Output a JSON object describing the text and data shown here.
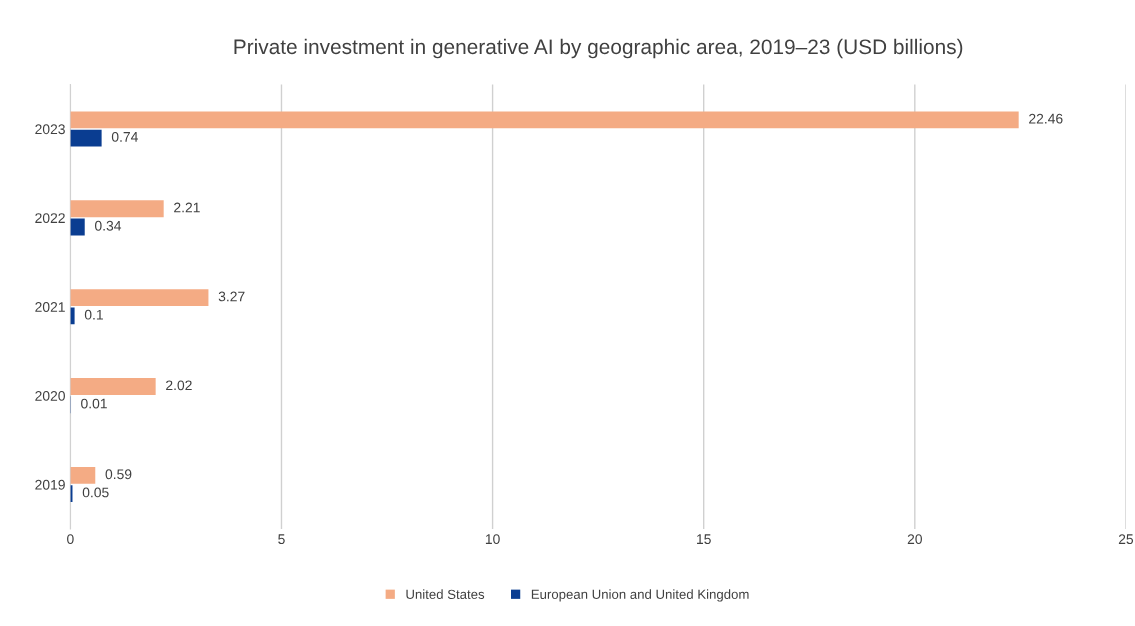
{
  "chart_data": {
    "type": "bar",
    "orientation": "horizontal",
    "title": "Private investment in generative AI by geographic area, 2019–23 (USD billions)",
    "categories": [
      "2023",
      "2022",
      "2021",
      "2020",
      "2019"
    ],
    "series": [
      {
        "name": "United States",
        "color": "#f4ab84",
        "values": [
          22.46,
          2.21,
          3.27,
          2.02,
          0.59
        ]
      },
      {
        "name": "European Union and United Kingdom",
        "color": "#0a3d91",
        "values": [
          0.74,
          0.34,
          0.1,
          0.01,
          0.05
        ]
      }
    ],
    "xlim": [
      0,
      25
    ],
    "xticks": [
      0,
      5,
      10,
      15,
      20,
      25
    ],
    "grid": "x",
    "legend": "bottom",
    "data_labels": true
  }
}
